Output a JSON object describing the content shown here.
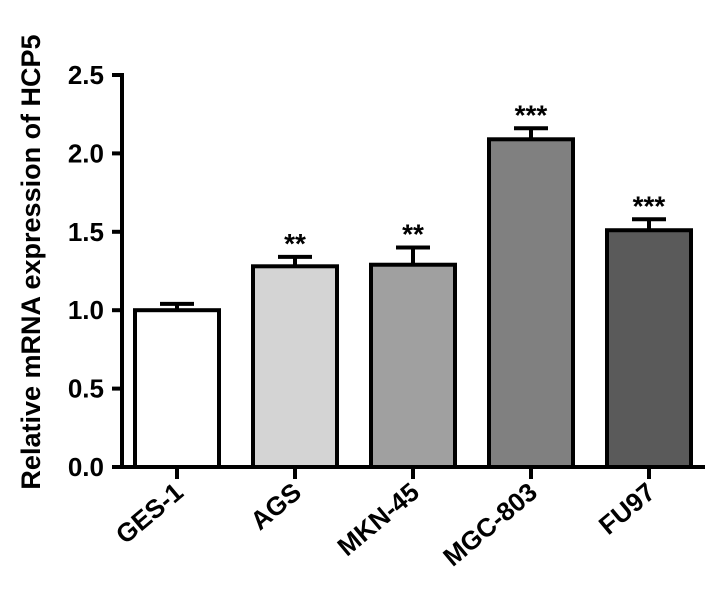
{
  "chart_data": {
    "type": "bar",
    "title": "",
    "xlabel": "",
    "ylabel": "Relative mRNA expression of HCP5",
    "ylim": [
      0,
      2.5
    ],
    "yticks": [
      "0.0",
      "0.5",
      "1.0",
      "1.5",
      "2.0",
      "2.5"
    ],
    "categories": [
      "GES-1",
      "AGS",
      "MKN-45",
      "MGC-803",
      "FU97"
    ],
    "values": [
      1.0,
      1.28,
      1.29,
      2.09,
      1.51
    ],
    "errors": [
      0.04,
      0.06,
      0.11,
      0.07,
      0.07
    ],
    "significance": [
      "",
      "**",
      "**",
      "***",
      "***"
    ],
    "colors": [
      "#ffffff",
      "#d4d4d4",
      "#a0a0a0",
      "#808080",
      "#5a5a5a"
    ],
    "grid": false,
    "legend": "none"
  }
}
